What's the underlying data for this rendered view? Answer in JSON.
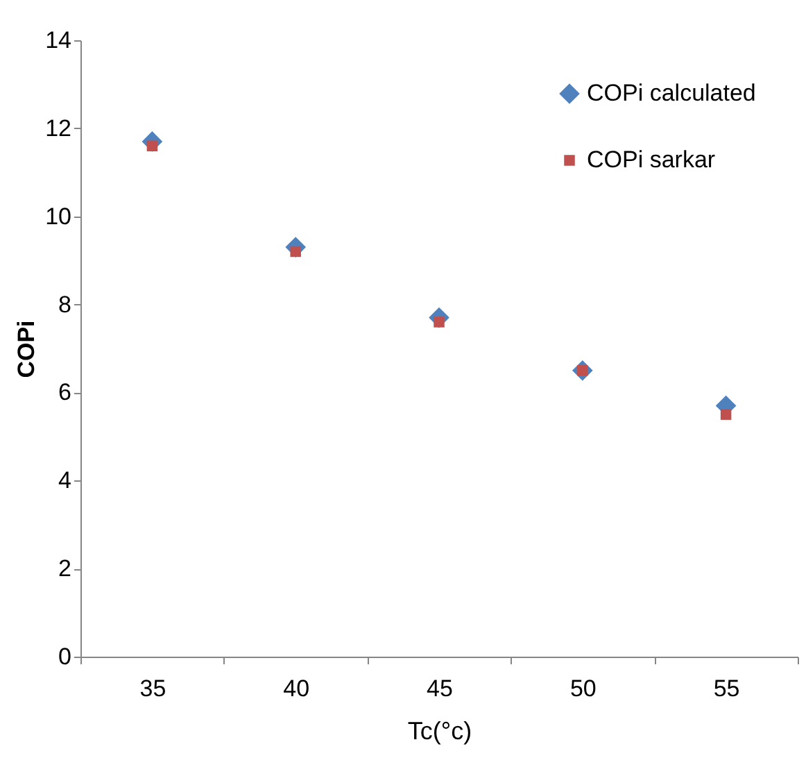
{
  "chart_data": {
    "type": "scatter",
    "xlabel": "Tc(°c)",
    "ylabel": "COPi",
    "categories": [
      "35",
      "40",
      "45",
      "50",
      "55"
    ],
    "series": [
      {
        "name": "COPi calculated",
        "color": "#4f81bd",
        "marker": "diamond",
        "values": [
          11.7,
          9.3,
          7.7,
          6.5,
          5.7
        ]
      },
      {
        "name": "COPi sarkar",
        "color": "#c0504d",
        "marker": "square",
        "values": [
          11.6,
          9.2,
          7.6,
          6.5,
          5.5
        ]
      }
    ],
    "ylim": [
      0,
      14
    ],
    "yticks": [
      0,
      2,
      4,
      6,
      8,
      10,
      12,
      14
    ],
    "grid": false,
    "legend": "top right"
  }
}
